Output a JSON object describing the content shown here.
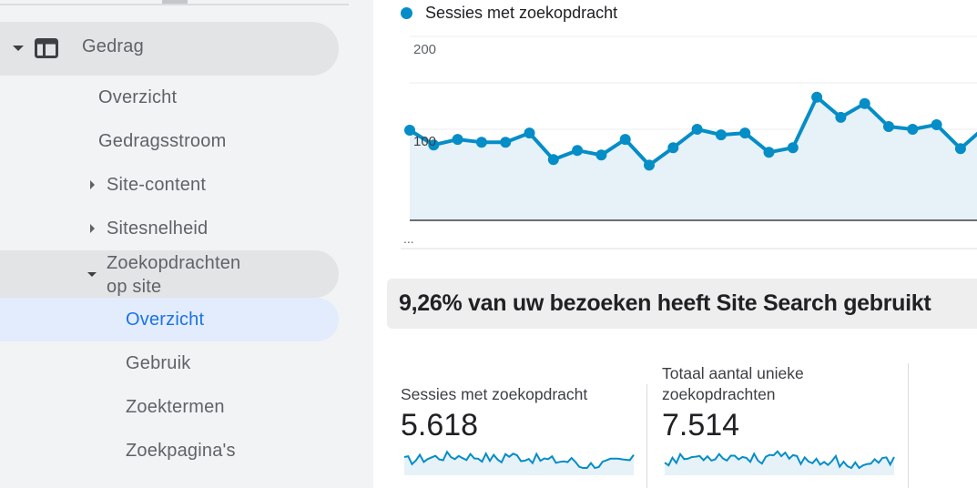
{
  "sidebar": {
    "section": "Gedrag",
    "items": [
      {
        "label": "Overzicht"
      },
      {
        "label": "Gedragsstroom"
      },
      {
        "label": "Site-content"
      },
      {
        "label": "Sitesnelheid"
      },
      {
        "label_line1": "Zoekopdrachten",
        "label_line2": "op site"
      }
    ],
    "subitems": [
      {
        "label": "Overzicht",
        "selected": true
      },
      {
        "label": "Gebruik"
      },
      {
        "label": "Zoektermen"
      },
      {
        "label": "Zoekpagina's"
      }
    ]
  },
  "chart": {
    "legend": "Sessies met zoekopdracht",
    "ytick_200": "200",
    "ytick_100": "100",
    "ellipsis": "...",
    "colors": {
      "line": "#058dc7",
      "fill": "#e6f2f8"
    }
  },
  "chart_data": {
    "type": "line",
    "series": [
      {
        "name": "Sessies met zoekopdracht",
        "values": [
          98,
          82,
          88,
          85,
          85,
          95,
          66,
          76,
          71,
          88,
          60,
          79,
          99,
          93,
          95,
          74,
          79,
          134,
          112,
          127,
          102,
          99,
          104,
          78,
          101
        ]
      }
    ],
    "ylim": [
      0,
      200
    ],
    "yticks": [
      "200",
      "100"
    ]
  },
  "headline": "9,26% van uw bezoeken heeft Site Search gebruikt",
  "metrics": [
    {
      "label_line1": "Sessies met zoekopdracht",
      "label_line2": "",
      "value": "5.618"
    },
    {
      "label_line1": "Totaal aantal unieke",
      "label_line2": "zoekopdrachten",
      "value": "7.514"
    }
  ]
}
